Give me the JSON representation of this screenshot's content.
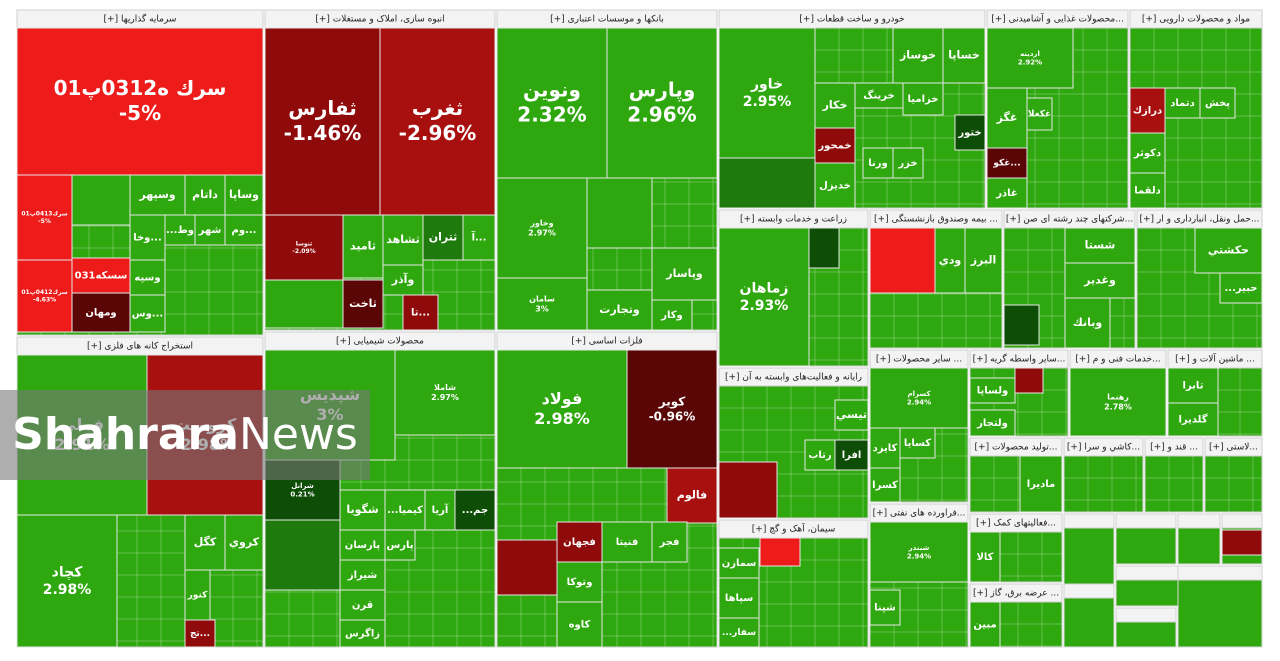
{
  "sectors": [
    {
      "title": "سرمایه گذاریها [+]",
      "tiles": [
        {
          "name": "سرك ه0312پ01",
          "change": "-5%"
        },
        {
          "name": "سرك0413پ01",
          "change": "-5%"
        },
        {
          "name": "سرك0412پ01",
          "change": "-4.63%"
        },
        {
          "name": "سسكه031"
        },
        {
          "name": "ومهان"
        },
        {
          "name": "وسپهر"
        },
        {
          "name": "داتام"
        },
        {
          "name": "وساپا"
        },
        {
          "name": "...وخا"
        },
        {
          "name": "وط..."
        },
        {
          "name": "شهر"
        },
        {
          "name": "...وم"
        },
        {
          "name": "وسپه"
        },
        {
          "name": "...وس"
        }
      ]
    },
    {
      "title": "انبوه سازی، املاک و مستغلات [+]",
      "tiles": [
        {
          "name": "ثفارس",
          "change": "-1.46%"
        },
        {
          "name": "ثغرب",
          "change": "-2.96%"
        },
        {
          "name": "ثنوسا",
          "change": "-2.09%"
        },
        {
          "name": "ثامید"
        },
        {
          "name": "ثشاهد"
        },
        {
          "name": "ثتران"
        },
        {
          "name": "...آ"
        },
        {
          "name": "ثاخت"
        },
        {
          "name": "وآذر"
        },
        {
          "name": "...تا"
        }
      ]
    },
    {
      "title": "بانکها و موسسات اعتباری [+]",
      "tiles": [
        {
          "name": "ونوین",
          "change": "2.32%"
        },
        {
          "name": "وپارس",
          "change": "2.96%"
        },
        {
          "name": "وخاور",
          "change": "2.97%"
        },
        {
          "name": "سامان",
          "change": "3%"
        },
        {
          "name": "وپاسار"
        },
        {
          "name": "وتجارت"
        },
        {
          "name": "وكار"
        }
      ]
    },
    {
      "title": "خودرو و ساخت قطعات [+]",
      "tiles": [
        {
          "name": "خاور",
          "change": "2.95%"
        },
        {
          "name": "خوساز"
        },
        {
          "name": "خساپا"
        },
        {
          "name": "خكار"
        },
        {
          "name": "خرينگ"
        },
        {
          "name": "خزاميا"
        },
        {
          "name": "خمحور"
        },
        {
          "name": "خديزل"
        },
        {
          "name": "ختور"
        },
        {
          "name": "ورنا"
        },
        {
          "name": "خزر"
        }
      ]
    },
    {
      "title": "...محصولات غذایی و آشامیدنی [+]",
      "tiles": [
        {
          "name": "اردینه",
          "change": "2.92%"
        },
        {
          "name": "غگز"
        },
        {
          "name": "غكغلا"
        },
        {
          "name": "...غكو"
        },
        {
          "name": "غاذر"
        }
      ]
    },
    {
      "title": "مواد و محصولات دارویی [+]",
      "tiles": [
        {
          "name": "درازك"
        },
        {
          "name": "دتماد"
        },
        {
          "name": "پخش"
        },
        {
          "name": "دكوثر"
        },
        {
          "name": "دلقما"
        }
      ]
    },
    {
      "title": "استخراج کانه های فلزی [+]",
      "tiles": [
        {
          "name": "فملی",
          "change": "2.91%"
        },
        {
          "name": "كرومیت",
          "change": "-2.98%"
        },
        {
          "name": "كچاد",
          "change": "2.98%"
        },
        {
          "name": "كگل"
        },
        {
          "name": "كروي"
        },
        {
          "name": "كنور"
        },
        {
          "name": "...تج"
        }
      ]
    },
    {
      "title": "محصولات شیمیایی [+]",
      "tiles": [
        {
          "name": "شپدیس",
          "change": "3%"
        },
        {
          "name": "شاملا",
          "change": "2.97%"
        },
        {
          "name": "شرانل",
          "change": "0.21%"
        },
        {
          "name": "شگويا"
        },
        {
          "name": "كيميا..."
        },
        {
          "name": "آريا"
        },
        {
          "name": "جم..."
        },
        {
          "name": "پارسان"
        },
        {
          "name": "پارس"
        },
        {
          "name": "شيراز"
        },
        {
          "name": "قرن"
        },
        {
          "name": "زاگرس"
        }
      ]
    },
    {
      "title": "فلزات اساسی [+]",
      "tiles": [
        {
          "name": "فولاد",
          "change": "2.98%"
        },
        {
          "name": "كوير",
          "change": "-0.96%"
        },
        {
          "name": "فالوم"
        },
        {
          "name": "فجهان"
        },
        {
          "name": "فجر"
        },
        {
          "name": "فنيتا"
        },
        {
          "name": "وتوكا"
        },
        {
          "name": "كاوه"
        }
      ]
    },
    {
      "title": "زراعت و خدمات وابسته [+]",
      "tiles": [
        {
          "name": "زماهان",
          "change": "2.93%"
        }
      ]
    },
    {
      "title": "... بیمه وصندوق بازنشستگی [+]",
      "tiles": [
        {
          "name": "ودي"
        },
        {
          "name": "البرز"
        }
      ]
    },
    {
      "title": "...شرکتهای چند رشته ای صن [+]",
      "tiles": [
        {
          "name": "شستا"
        },
        {
          "name": "وغدير"
        },
        {
          "name": "وبانك"
        }
      ]
    },
    {
      "title": "...حمل ونقل، انبارداری و ار [+]",
      "tiles": [
        {
          "name": "حكشتي"
        },
        {
          "name": "حبير..."
        }
      ]
    },
    {
      "title": "رایانه و فعالیت‌های وابسته به آن [+]",
      "tiles": [
        {
          "name": "تيسي"
        },
        {
          "name": "افرا"
        },
        {
          "name": "رتاب"
        }
      ]
    },
    {
      "title": "سیمان، آهک و گچ [+]",
      "tiles": [
        {
          "name": "سمازن"
        },
        {
          "name": "سپاها"
        },
        {
          "name": "سفار..."
        }
      ]
    },
    {
      "title": "... سایر محصولات [+]",
      "tiles": [
        {
          "name": "كسرام",
          "change": "2.94%"
        },
        {
          "name": "كايزد"
        },
        {
          "name": "كسايا"
        },
        {
          "name": "كسرا"
        }
      ]
    },
    {
      "title": "...فراورده های نفتی [+]",
      "tiles": [
        {
          "name": "شبندر",
          "change": "2.94%"
        },
        {
          "name": "شپنا"
        }
      ]
    },
    {
      "title": "...سایر واسطه گریه [+]",
      "tiles": [
        {
          "name": "ولساپا"
        },
        {
          "name": "ولتجار"
        }
      ]
    },
    {
      "title": "...خدمات فنی و م [+]",
      "tiles": [
        {
          "name": "رهنما",
          "change": "2.78%"
        }
      ]
    },
    {
      "title": "... ماشین آلات و [+]",
      "tiles": [
        {
          "name": "تابرا"
        },
        {
          "name": "گلديرا"
        }
      ]
    },
    {
      "title": "...تولید محصولات [+]",
      "tiles": [
        {
          "name": "ماديرا"
        }
      ]
    },
    {
      "title": "...كاشي و سرا [+]",
      "tiles": []
    },
    {
      "title": "... قند و [+]",
      "tiles": []
    },
    {
      "title": "...لاستی [+]",
      "tiles": []
    },
    {
      "title": "...فعالیتهای کمک [+]",
      "tiles": [
        {
          "name": "كالا"
        }
      ]
    },
    {
      "title": "... عرضه برق، گاز [+]",
      "tiles": [
        {
          "name": "مبين"
        }
      ]
    }
  ],
  "watermark": {
    "brand": "Shahrara",
    "suffix": "News"
  }
}
